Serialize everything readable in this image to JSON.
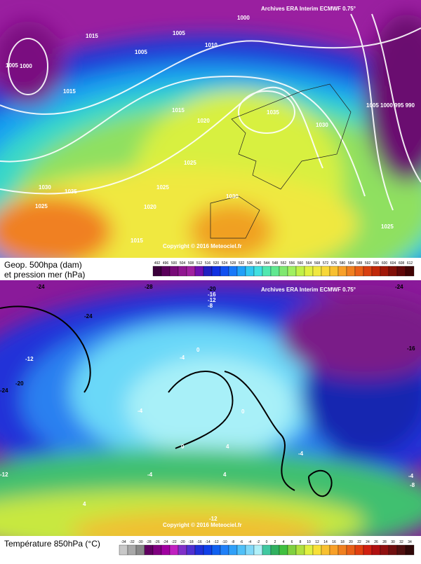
{
  "top_map": {
    "source": "Archives ERA Interim ECMWF 0.75°",
    "copyright": "Copyright © 2016 Meteociel.fr",
    "title_lines": [
      "Geop. 500hpa (dam)",
      "et pression mer (hPa)"
    ],
    "contour_labels": [
      "1000",
      "1015",
      "1005",
      "1005",
      "1005",
      "1010",
      "1015",
      "1020",
      "1025",
      "1030",
      "1035",
      "1030",
      "1025",
      "1020",
      "1015",
      "1030",
      "1025",
      "1035",
      "1015",
      "1005 1000 995 990",
      "1025",
      "1000"
    ],
    "scale": [
      492,
      496,
      500,
      504,
      508,
      512,
      516,
      520,
      524,
      528,
      532,
      536,
      540,
      544,
      548,
      552,
      556,
      560,
      564,
      568,
      572,
      576,
      580,
      584,
      588,
      592,
      596,
      600,
      604,
      608,
      612
    ]
  },
  "bottom_map": {
    "source": "Archives ERA Interim ECMWF 0.75°",
    "copyright": "Copyright © 2016 Meteociel.fr",
    "title": "Température 850hPa (°C)",
    "contour_labels": [
      "-24",
      "-28",
      "-20",
      "-16",
      "-12",
      "-8",
      "-24",
      "-12",
      "-20",
      "0",
      "-4",
      "-4",
      "0",
      "0",
      "-4",
      "4",
      "-4",
      "4",
      "-16",
      "-24",
      "-12",
      "4",
      "-8",
      "-4",
      "-12",
      "-24"
    ],
    "scale": [
      -34,
      -32,
      -30,
      -28,
      -26,
      -24,
      -22,
      -20,
      -18,
      -16,
      -14,
      -12,
      -10,
      -8,
      -6,
      -4,
      -2,
      0,
      2,
      4,
      6,
      8,
      10,
      12,
      14,
      16,
      18,
      20,
      22,
      24,
      26,
      28,
      30,
      32,
      34
    ]
  }
}
